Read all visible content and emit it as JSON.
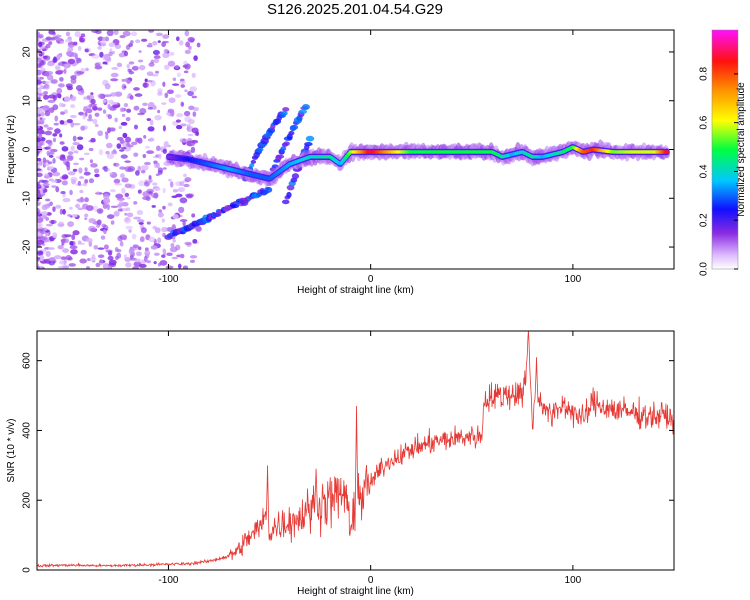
{
  "title": "S126.2025.201.04.54.G29",
  "chart_data": [
    {
      "type": "heatmap",
      "xlabel": "Height of straight line (km)",
      "ylabel": "Frequency (Hz)",
      "xlim": [
        -165,
        150
      ],
      "ylim": [
        -24.5,
        24.5
      ],
      "x_ticks": [
        -100,
        0,
        100
      ],
      "y_ticks": [
        -20,
        -10,
        0,
        10,
        20
      ],
      "colorbar": {
        "label": "Normalized spectral amplitude",
        "range": [
          0,
          0.98
        ],
        "ticks": [
          0.0,
          0.2,
          0.4,
          0.6,
          0.8
        ]
      },
      "ridge": {
        "x": [
          -100,
          -90,
          -80,
          -70,
          -60,
          -50,
          -40,
          -30,
          -20,
          -15,
          -10,
          0,
          20,
          40,
          60,
          65,
          70,
          75,
          80,
          85,
          90,
          95,
          100,
          105,
          110,
          120,
          130,
          140,
          147
        ],
        "freq": [
          -1.5,
          -2,
          -3,
          -4,
          -5,
          -6,
          -3,
          -1.5,
          -1.5,
          -3,
          -0.5,
          -0.5,
          -0.5,
          -0.5,
          -0.5,
          -1.5,
          -1,
          -0.5,
          -1.5,
          -1.5,
          -1,
          -0.5,
          0.5,
          -0.5,
          0,
          -0.5,
          -0.5,
          -0.5,
          -0.5
        ],
        "amplitude": [
          0.15,
          0.25,
          0.3,
          0.35,
          0.3,
          0.3,
          0.35,
          0.4,
          0.45,
          0.35,
          0.55,
          0.9,
          0.5,
          0.5,
          0.5,
          0.45,
          0.35,
          0.4,
          0.45,
          0.35,
          0.4,
          0.45,
          0.5,
          0.8,
          0.85,
          0.55,
          0.6,
          0.6,
          0.9
        ]
      },
      "branches": [
        {
          "x": [
            -100,
            -90,
            -80,
            -70,
            -60,
            -50
          ],
          "freq": [
            -18,
            -16,
            -14,
            -12,
            -10,
            -8
          ]
        },
        {
          "x": [
            -62,
            -55,
            -48,
            -42
          ],
          "freq": [
            -6,
            0,
            5,
            8
          ]
        },
        {
          "x": [
            -48,
            -40,
            -32
          ],
          "freq": [
            -4,
            3,
            9
          ]
        },
        {
          "x": [
            -42,
            -36,
            -30
          ],
          "freq": [
            -11,
            -4,
            2
          ]
        }
      ]
    },
    {
      "type": "line",
      "xlabel": "Height of straight line (km)",
      "ylabel": "SNR (10 * v/v)",
      "xlim": [
        -165,
        150
      ],
      "ylim": [
        0,
        685
      ],
      "x_ticks": [
        -100,
        0,
        100
      ],
      "y_ticks": [
        0,
        200,
        400,
        600
      ],
      "color": "#e53935",
      "series": [
        {
          "x": [
            -165,
            -150,
            -130,
            -110,
            -90,
            -80,
            -70,
            -65,
            -60,
            -55,
            -52,
            -50,
            -45,
            -40,
            -35,
            -30,
            -25,
            -20,
            -15,
            -12,
            -10,
            -8,
            -5,
            0,
            5,
            10,
            20,
            30,
            40,
            50,
            55,
            56,
            60,
            65,
            70,
            75,
            77,
            78,
            80,
            82,
            85,
            88,
            90,
            95,
            100,
            105,
            110,
            115,
            120,
            130,
            140,
            145,
            150
          ],
          "y": [
            12,
            14,
            12,
            15,
            18,
            25,
            40,
            60,
            95,
            120,
            150,
            110,
            130,
            140,
            150,
            175,
            190,
            200,
            215,
            220,
            90,
            190,
            210,
            250,
            290,
            315,
            345,
            365,
            375,
            385,
            380,
            490,
            495,
            500,
            505,
            510,
            560,
            660,
            430,
            500,
            480,
            450,
            440,
            475,
            455,
            430,
            480,
            470,
            460,
            450,
            440,
            445,
            430
          ]
        }
      ],
      "spikes": [
        {
          "x": -51,
          "y": 300
        },
        {
          "x": -27,
          "y": 290
        },
        {
          "x": -7,
          "y": 470
        },
        {
          "x": 78,
          "y": 685
        },
        {
          "x": 82,
          "y": 610
        }
      ]
    }
  ]
}
